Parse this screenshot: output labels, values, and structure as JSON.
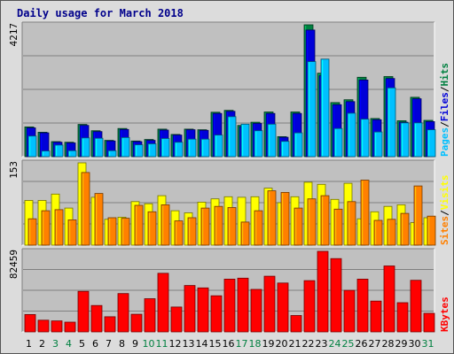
{
  "colors": {
    "hits": "#008040",
    "files": "#0000d8",
    "pages": "#00c0ff",
    "visits": "#ffff00",
    "sites": "#ff8000",
    "kbytes": "#ff0000",
    "panel_bg": "#c0c0c0",
    "title": "#00008b",
    "weekday_label": "#000000",
    "weekend_label": "#008040"
  },
  "chart_data": {
    "type": "bar",
    "title": "Daily usage for March 2018",
    "days": [
      "1",
      "2",
      "3",
      "4",
      "5",
      "6",
      "7",
      "8",
      "9",
      "10",
      "11",
      "12",
      "13",
      "14",
      "15",
      "16",
      "17",
      "18",
      "19",
      "20",
      "21",
      "22",
      "23",
      "24",
      "25",
      "26",
      "27",
      "28",
      "29",
      "30",
      "31"
    ],
    "weekend_days": [
      "3",
      "4",
      "10",
      "11",
      "17",
      "18",
      "24",
      "25",
      "31"
    ],
    "panels": [
      {
        "name": "hits-files-pages",
        "ymax_label": "4217",
        "ymax": 4217,
        "legend": [
          {
            "text": "Pages",
            "color_key": "pages"
          },
          {
            "text": "/",
            "color_key": "none"
          },
          {
            "text": "Files",
            "color_key": "files"
          },
          {
            "text": "/",
            "color_key": "none"
          },
          {
            "text": "Hits",
            "color_key": "hits"
          }
        ],
        "series": [
          {
            "name": "Hits",
            "color_key": "hits",
            "values": [
              950,
              780,
              480,
              460,
              1030,
              830,
              520,
              900,
              500,
              550,
              880,
              710,
              880,
              860,
              1420,
              1480,
              1000,
              1100,
              1430,
              640,
              1430,
              4217,
              2670,
              1730,
              1820,
              2540,
              1220,
              2560,
              1150,
              1900,
              1160
            ]
          },
          {
            "name": "Files",
            "color_key": "files",
            "values": [
              920,
              760,
              460,
              440,
              1000,
              800,
              500,
              870,
              480,
              520,
              850,
              690,
              860,
              840,
              1380,
              1450,
              960,
              1060,
              1380,
              620,
              1380,
              4050,
              2590,
              1660,
              1760,
              2450,
              1180,
              2500,
              1100,
              1850,
              1120
            ]
          },
          {
            "name": "Pages",
            "color_key": "pages",
            "values": [
              660,
              180,
              370,
              190,
              600,
              590,
              190,
              610,
              380,
              410,
              580,
              460,
              560,
              560,
              690,
              1280,
              1040,
              830,
              1040,
              490,
              760,
              3040,
              3120,
              900,
              1390,
              1200,
              790,
              2200,
              1080,
              1080,
              860
            ]
          }
        ]
      },
      {
        "name": "visits-sites",
        "ymax_label": "153",
        "ymax": 153,
        "legend": [
          {
            "text": "Sites",
            "color_key": "sites"
          },
          {
            "text": "/",
            "color_key": "none"
          },
          {
            "text": "Visits",
            "color_key": "visits"
          }
        ],
        "series": [
          {
            "name": "Visits",
            "color_key": "visits",
            "values": [
              83,
              83,
              95,
              69,
              153,
              89,
              48,
              52,
              81,
              77,
              92,
              64,
              60,
              80,
              86,
              90,
              89,
              90,
              106,
              79,
              90,
              117,
              113,
              85,
              115,
              49,
              62,
              72,
              75,
              42,
              51
            ]
          },
          {
            "name": "Sites",
            "color_key": "sites",
            "values": [
              49,
              64,
              66,
              47,
              135,
              96,
              51,
              50,
              74,
              62,
              75,
              45,
              51,
              69,
              72,
              70,
              43,
              64,
              101,
              98,
              69,
              86,
              92,
              67,
              81,
              121,
              46,
              48,
              59,
              110,
              54
            ]
          }
        ]
      },
      {
        "name": "kbytes",
        "ymax_label": "82459",
        "ymax": 82459,
        "legend": [
          {
            "text": "KBytes",
            "color_key": "kbytes"
          }
        ],
        "series": [
          {
            "name": "KBytes",
            "color_key": "kbytes",
            "values": [
              17800,
              12000,
              11200,
              10000,
              41500,
              27000,
              15500,
              39200,
              18000,
              34000,
              60000,
              25500,
              47500,
              45000,
              37000,
              54000,
              55000,
              43500,
              57000,
              50000,
              16800,
              52500,
              82459,
              75000,
              42500,
              54000,
              31500,
              67500,
              29900,
              52800,
              19000
            ]
          }
        ]
      }
    ]
  }
}
